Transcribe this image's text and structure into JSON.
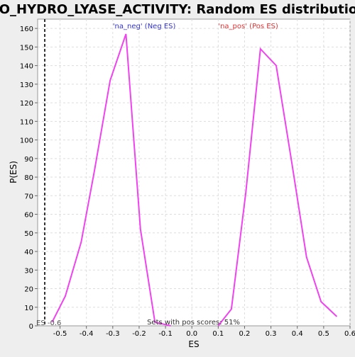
{
  "chart_data": {
    "type": "line",
    "title": "GO_HYDRO_LYASE_ACTIVITY: Random ES distribution",
    "xlabel": "ES",
    "ylabel": "P(ES)",
    "xlim": [
      -0.585,
      0.6
    ],
    "ylim": [
      0,
      165
    ],
    "x_ticks": [
      -0.5,
      -0.4,
      -0.3,
      -0.2,
      -0.1,
      0.0,
      0.1,
      0.2,
      0.3,
      0.4,
      0.5,
      0.6
    ],
    "y_ticks": [
      0,
      10,
      20,
      30,
      40,
      50,
      60,
      70,
      80,
      90,
      100,
      110,
      120,
      130,
      140,
      150,
      160
    ],
    "grid": true,
    "series": [
      {
        "name": "'na_neg' (Neg ES)",
        "color": "#ee44ee",
        "x": [
          -0.53,
          -0.48,
          -0.42,
          -0.37,
          -0.31,
          -0.25,
          -0.195,
          -0.14,
          -0.08
        ],
        "y": [
          2,
          16,
          45,
          83,
          132,
          157,
          52,
          2,
          0
        ]
      },
      {
        "name": "'na_pos' (Pos ES)",
        "color": "#ee44ee",
        "x": [
          0.1,
          0.15,
          0.205,
          0.26,
          0.32,
          0.38,
          0.435,
          0.49,
          0.55
        ],
        "y": [
          0,
          9,
          72,
          149,
          140,
          87,
          37,
          13,
          5
        ]
      }
    ],
    "legend_labels": [
      {
        "text": "'na_neg' (Neg ES)",
        "color": "#3333cc",
        "x": -0.3
      },
      {
        "text": "'na_pos' (Pos ES)",
        "color": "#dd3333",
        "x": 0.1
      }
    ],
    "marker_line": {
      "x": -0.558,
      "label": "ES -0.6"
    },
    "annotation": "Sets with pos scores: 51%"
  }
}
